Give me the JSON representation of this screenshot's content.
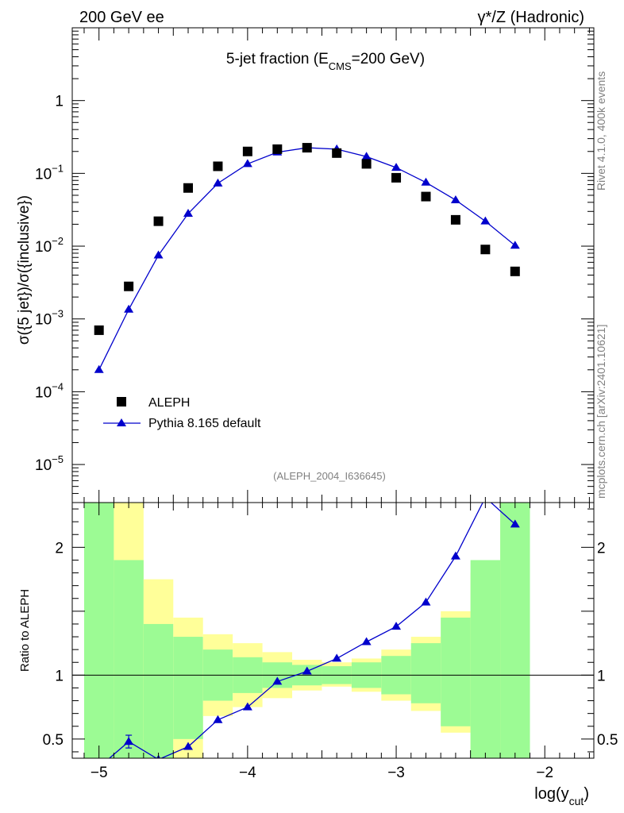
{
  "header": {
    "left": "200 GeV ee",
    "right": "γ*/Z (Hadronic)"
  },
  "side_text": {
    "upper": "Rivet 4.1.0,  400k events",
    "lower": "mcplots.cern.ch [arXiv:2401.10621]"
  },
  "colors": {
    "mc_line": "#0000cc",
    "data_marker": "#000000",
    "band_inner": "#9cfb94",
    "band_outer": "#ffff99"
  },
  "chart_data": [
    {
      "type": "scatter",
      "title": "5-jet fraction (E_CMS=200 GeV)",
      "title_parts": {
        "main": "5-jet fraction (E",
        "sub": "CMS",
        "tail": "=200 GeV)"
      },
      "analysis_label": "(ALEPH_2004_I636645)",
      "ylabel": "σ({5 jet})/σ({inclusive})",
      "yscale": "log",
      "ylim": [
        3e-06,
        10
      ],
      "xlim": [
        -5.18,
        -1.67
      ],
      "y_ticks": [
        {
          "value": 1e-05,
          "base": "10",
          "exp": "−5"
        },
        {
          "value": 0.0001,
          "base": "10",
          "exp": "−4"
        },
        {
          "value": 0.001,
          "base": "10",
          "exp": "−3"
        },
        {
          "value": 0.01,
          "base": "10",
          "exp": "−2"
        },
        {
          "value": 0.1,
          "base": "10",
          "exp": "−1"
        },
        {
          "value": 1,
          "base": "1",
          "exp": ""
        }
      ],
      "legend": [
        {
          "name": "ALEPH",
          "marker": "square"
        },
        {
          "name": "Pythia 8.165 default",
          "marker": "triangle-line"
        }
      ],
      "legend_position": "bottom-left",
      "series": [
        {
          "name": "ALEPH",
          "x": [
            -5.0,
            -4.8,
            -4.6,
            -4.4,
            -4.2,
            -4.0,
            -3.8,
            -3.6,
            -3.4,
            -3.2,
            -3.0,
            -2.8,
            -2.6,
            -2.4,
            -2.2
          ],
          "y": [
            0.0007,
            0.0028,
            0.022,
            0.063,
            0.125,
            0.2,
            0.215,
            0.225,
            0.19,
            0.135,
            0.087,
            0.048,
            0.023,
            0.009,
            0.0045
          ]
        },
        {
          "name": "Pythia 8.165 default",
          "x": [
            -5.0,
            -4.8,
            -4.6,
            -4.4,
            -4.2,
            -4.0,
            -3.8,
            -3.6,
            -3.4,
            -3.2,
            -3.0,
            -2.8,
            -2.6,
            -2.4,
            -2.2
          ],
          "y": [
            0.0002,
            0.00135,
            0.0075,
            0.028,
            0.073,
            0.135,
            0.195,
            0.225,
            0.215,
            0.17,
            0.12,
            0.075,
            0.043,
            0.022,
            0.0102
          ]
        }
      ]
    },
    {
      "type": "line",
      "ylabel": "Ratio to ALEPH",
      "xlabel": "log(y_cut)",
      "xlabel_parts": {
        "main": "log(y",
        "sub": "cut",
        "tail": ")"
      },
      "ylim": [
        0.35,
        2.35
      ],
      "xlim": [
        -5.18,
        -1.67
      ],
      "x_ticks": [
        {
          "value": -5,
          "label": "−5"
        },
        {
          "value": -4,
          "label": "−4"
        },
        {
          "value": -3,
          "label": "−3"
        },
        {
          "value": -2,
          "label": "−2"
        }
      ],
      "y_ticks": [
        {
          "value": 0.5,
          "label": "0.5"
        },
        {
          "value": 1,
          "label": "1"
        },
        {
          "value": 2,
          "label": "2"
        }
      ],
      "reference_line": 1,
      "bands": {
        "edges": [
          -5.1,
          -4.9,
          -4.7,
          -4.5,
          -4.3,
          -4.1,
          -3.9,
          -3.7,
          -3.5,
          -3.3,
          -3.1,
          -2.9,
          -2.7,
          -2.5,
          -2.3,
          -2.1
        ],
        "inner": [
          [
            0.1,
            2.4
          ],
          [
            0.1,
            1.9
          ],
          [
            0.1,
            1.4
          ],
          [
            0.5,
            1.3
          ],
          [
            0.8,
            1.2
          ],
          [
            0.86,
            1.14
          ],
          [
            0.9,
            1.1
          ],
          [
            0.92,
            1.08
          ],
          [
            0.93,
            1.07
          ],
          [
            0.9,
            1.1
          ],
          [
            0.85,
            1.15
          ],
          [
            0.78,
            1.25
          ],
          [
            0.6,
            1.45
          ],
          [
            0.1,
            1.9
          ],
          [
            0.1,
            2.4
          ]
        ],
        "outer": [
          [
            0.1,
            2.4
          ],
          [
            0.1,
            2.4
          ],
          [
            0.1,
            1.75
          ],
          [
            0.2,
            1.45
          ],
          [
            0.68,
            1.32
          ],
          [
            0.75,
            1.25
          ],
          [
            0.82,
            1.18
          ],
          [
            0.88,
            1.12
          ],
          [
            0.91,
            1.1
          ],
          [
            0.87,
            1.13
          ],
          [
            0.8,
            1.2
          ],
          [
            0.72,
            1.3
          ],
          [
            0.55,
            1.5
          ],
          [
            0.1,
            1.8
          ],
          [
            0.1,
            2.4
          ]
        ]
      },
      "series": [
        {
          "name": "Pythia 8.165 default / ALEPH",
          "x": [
            -5.0,
            -4.8,
            -4.6,
            -4.4,
            -4.2,
            -4.0,
            -3.8,
            -3.6,
            -3.4,
            -3.2,
            -3.0,
            -2.8,
            -2.6,
            -2.4,
            -2.2
          ],
          "y": [
            0.28,
            0.48,
            0.34,
            0.44,
            0.65,
            0.75,
            0.95,
            1.03,
            1.13,
            1.26,
            1.38,
            1.57,
            1.93,
            2.39,
            2.18
          ]
        }
      ]
    }
  ]
}
